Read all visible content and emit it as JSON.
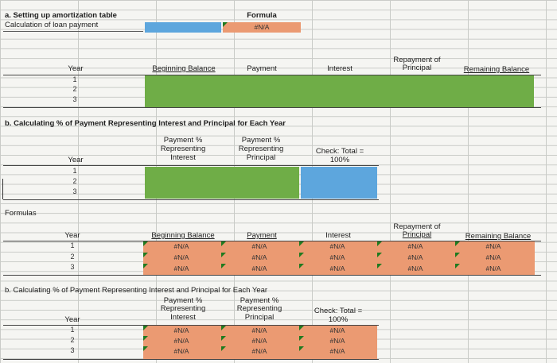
{
  "section_a": {
    "title": "a. Setting up amortization table",
    "subtitle": "Calculation of loan payment",
    "formula_label": "Formula",
    "formula_value": "#N/A",
    "headers": {
      "year": "Year",
      "beginning_balance": "Beginning Balance",
      "payment": "Payment",
      "interest": "Interest",
      "repayment_line1": "Repayment of",
      "repayment_line2": "Principal",
      "remaining_balance": "Remaining Balance"
    },
    "years": [
      "1",
      "2",
      "3"
    ]
  },
  "section_b": {
    "title": "b. Calculating % of Payment Representing Interest and Principal for Each Year",
    "headers": {
      "year": "Year",
      "pct_interest_1": "Payment %",
      "pct_interest_2": "Representing",
      "pct_interest_3": "Interest",
      "pct_principal_1": "Payment %",
      "pct_principal_2": "Representing",
      "pct_principal_3": "Principal",
      "check_1": "Check: Total =",
      "check_2": "100%"
    },
    "years": [
      "1",
      "2",
      "3"
    ]
  },
  "formulas": {
    "label": "Formulas",
    "headers": {
      "year": "Year",
      "beginning_balance": "Beginning Balance",
      "payment": "Payment",
      "interest": "Interest",
      "repayment_line1": "Repayment of",
      "repayment_line2": "Principal",
      "remaining_balance": "Remaining Balance"
    },
    "years": [
      "1",
      "2",
      "3"
    ],
    "na": "#N/A"
  },
  "formulas_b": {
    "title": "b. Calculating % of Payment Representing Interest and Principal for Each Year",
    "headers": {
      "year": "Year",
      "pct_interest_1": "Payment %",
      "pct_interest_2": "Representing",
      "pct_interest_3": "Interest",
      "pct_principal_1": "Payment %",
      "pct_principal_2": "Representing",
      "pct_principal_3": "Principal",
      "check_1": "Check: Total =",
      "check_2": "100%"
    },
    "years": [
      "1",
      "2",
      "3"
    ],
    "na": "#N/A"
  },
  "colors": {
    "green": "#6fad47",
    "blue": "#5da6dd",
    "orange": "#eb9a72",
    "error_triangle": "#1f7a1f"
  }
}
